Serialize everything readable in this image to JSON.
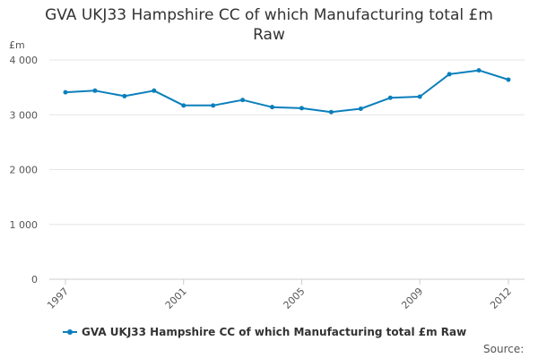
{
  "chart_data": {
    "type": "line",
    "title_line1": "GVA UKJ33 Hampshire CC of which Manufacturing total £m",
    "title_line2": "Raw",
    "ylabel": "£m",
    "x": [
      1997,
      1998,
      1999,
      2000,
      2001,
      2002,
      2003,
      2004,
      2005,
      2006,
      2007,
      2008,
      2009,
      2010,
      2011,
      2012
    ],
    "x_tick_labels": [
      "1997",
      "2001",
      "2005",
      "2009",
      "2012"
    ],
    "x_tick_values": [
      1997,
      2001,
      2005,
      2009,
      2012
    ],
    "y_tick_labels": [
      "0",
      "1 000",
      "2 000",
      "3 000",
      "4 000"
    ],
    "y_tick_values": [
      0,
      1000,
      2000,
      3000,
      4000
    ],
    "ylim": [
      0,
      4000
    ],
    "grid": true,
    "legend_position": "bottom-left",
    "series": [
      {
        "name": "GVA UKJ33 Hampshire CC of which Manufacturing total £m Raw",
        "color": "#0b7fbc",
        "values": [
          3410,
          3440,
          3340,
          3440,
          3170,
          3170,
          3270,
          3140,
          3120,
          3050,
          3110,
          3310,
          3330,
          3740,
          3810,
          3640
        ]
      }
    ]
  },
  "legend": {
    "label": "GVA UKJ33 Hampshire CC of which Manufacturing total £m Raw"
  },
  "source_label": "Source:"
}
